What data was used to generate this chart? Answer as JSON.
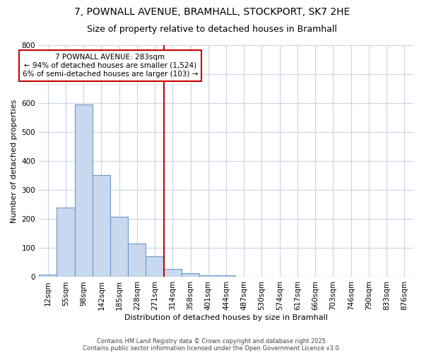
{
  "title_line1": "7, POWNALL AVENUE, BRAMHALL, STOCKPORT, SK7 2HE",
  "title_line2": "Size of property relative to detached houses in Bramhall",
  "xlabel": "Distribution of detached houses by size in Bramhall",
  "ylabel": "Number of detached properties",
  "bar_values": [
    8,
    240,
    595,
    352,
    207,
    116,
    72,
    27,
    13,
    6,
    7,
    0,
    0,
    0,
    0,
    0,
    0,
    0,
    0,
    0,
    0
  ],
  "bin_labels": [
    "12sqm",
    "55sqm",
    "98sqm",
    "142sqm",
    "185sqm",
    "228sqm",
    "271sqm",
    "314sqm",
    "358sqm",
    "401sqm",
    "444sqm",
    "487sqm",
    "530sqm",
    "574sqm",
    "617sqm",
    "660sqm",
    "703sqm",
    "746sqm",
    "790sqm",
    "833sqm",
    "876sqm"
  ],
  "bar_color": "#c8d8ee",
  "bar_edge_color": "#6699cc",
  "vline_x_index": 6,
  "vline_color": "#cc0000",
  "annotation_line1": "7 POWNALL AVENUE: 283sqm",
  "annotation_line2": "← 94% of detached houses are smaller (1,524)",
  "annotation_line3": "6% of semi-detached houses are larger (103) →",
  "annotation_box_color": "#cc0000",
  "ylim": [
    0,
    800
  ],
  "yticks": [
    0,
    100,
    200,
    300,
    400,
    500,
    600,
    700,
    800
  ],
  "background_color": "#ffffff",
  "plot_bg_color": "#ffffff",
  "grid_color": "#c8d4e8",
  "footer_line1": "Contains HM Land Registry data © Crown copyright and database right 2025.",
  "footer_line2": "Contains public sector information licensed under the Open Government Licence v3.0.",
  "title_fontsize": 10,
  "subtitle_fontsize": 9,
  "axis_label_fontsize": 8,
  "tick_fontsize": 7.5,
  "footer_fontsize": 6
}
